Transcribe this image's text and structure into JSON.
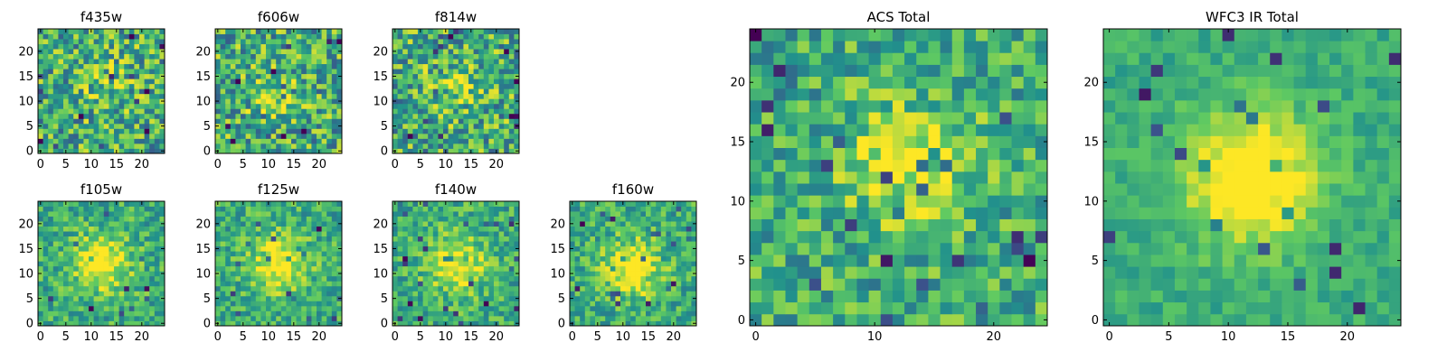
{
  "figure": {
    "background": "#ffffff"
  },
  "colormap": {
    "name": "viridis",
    "stops": [
      "#440154",
      "#3b528b",
      "#21918c",
      "#5ec962",
      "#fde725"
    ]
  },
  "chart_data": [
    {
      "type": "heatmap",
      "title": "f435w",
      "grid_size": 25,
      "range": [
        0,
        24
      ],
      "xticks": [
        0,
        5,
        10,
        15,
        20
      ],
      "yticks": [
        0,
        5,
        10,
        15,
        20
      ],
      "source_peak": [
        13,
        13
      ],
      "source_strength": 0.12,
      "noise": 0.55
    },
    {
      "type": "heatmap",
      "title": "f606w",
      "grid_size": 25,
      "range": [
        0,
        24
      ],
      "xticks": [
        0,
        5,
        10,
        15,
        20
      ],
      "yticks": [
        0,
        5,
        10,
        15,
        20
      ],
      "source_peak": [
        11,
        10
      ],
      "source_strength": 0.12,
      "noise": 0.55
    },
    {
      "type": "heatmap",
      "title": "f814w",
      "grid_size": 25,
      "range": [
        0,
        24
      ],
      "xticks": [
        0,
        5,
        10,
        15,
        20
      ],
      "yticks": [
        0,
        5,
        10,
        15,
        20
      ],
      "source_peak": [
        12,
        12
      ],
      "source_strength": 0.14,
      "noise": 0.55
    },
    {
      "type": "heatmap",
      "title": "f105w",
      "grid_size": 25,
      "range": [
        0,
        24
      ],
      "xticks": [
        0,
        5,
        10,
        15,
        20
      ],
      "yticks": [
        0,
        5,
        10,
        15,
        20
      ],
      "source_peak": [
        12,
        12
      ],
      "source_strength": 0.45,
      "noise": 0.35
    },
    {
      "type": "heatmap",
      "title": "f125w",
      "grid_size": 25,
      "range": [
        0,
        24
      ],
      "xticks": [
        0,
        5,
        10,
        15,
        20
      ],
      "yticks": [
        0,
        5,
        10,
        15,
        20
      ],
      "source_peak": [
        12,
        12
      ],
      "source_strength": 0.45,
      "noise": 0.35
    },
    {
      "type": "heatmap",
      "title": "f140w",
      "grid_size": 25,
      "range": [
        0,
        24
      ],
      "xticks": [
        0,
        5,
        10,
        15,
        20
      ],
      "yticks": [
        0,
        5,
        10,
        15,
        20
      ],
      "source_peak": [
        12,
        12
      ],
      "source_strength": 0.42,
      "noise": 0.35
    },
    {
      "type": "heatmap",
      "title": "f160w",
      "grid_size": 25,
      "range": [
        0,
        24
      ],
      "xticks": [
        0,
        5,
        10,
        15,
        20
      ],
      "yticks": [
        0,
        5,
        10,
        15,
        20
      ],
      "source_peak": [
        12,
        11
      ],
      "source_strength": 0.45,
      "noise": 0.35
    },
    {
      "type": "heatmap",
      "title": "ACS Total",
      "grid_size": 25,
      "range": [
        0,
        24
      ],
      "xticks": [
        0,
        10,
        20
      ],
      "yticks": [
        0,
        5,
        10,
        15,
        20
      ],
      "source_peak": [
        13,
        13
      ],
      "source_strength": 0.3,
      "noise": 0.4
    },
    {
      "type": "heatmap",
      "title": "WFC3 IR Total",
      "grid_size": 25,
      "range": [
        0,
        24
      ],
      "xticks": [
        0,
        5,
        10,
        15,
        20
      ],
      "yticks": [
        0,
        5,
        10,
        15,
        20
      ],
      "source_peak": [
        12,
        12
      ],
      "source_strength": 0.55,
      "noise": 0.18
    }
  ]
}
